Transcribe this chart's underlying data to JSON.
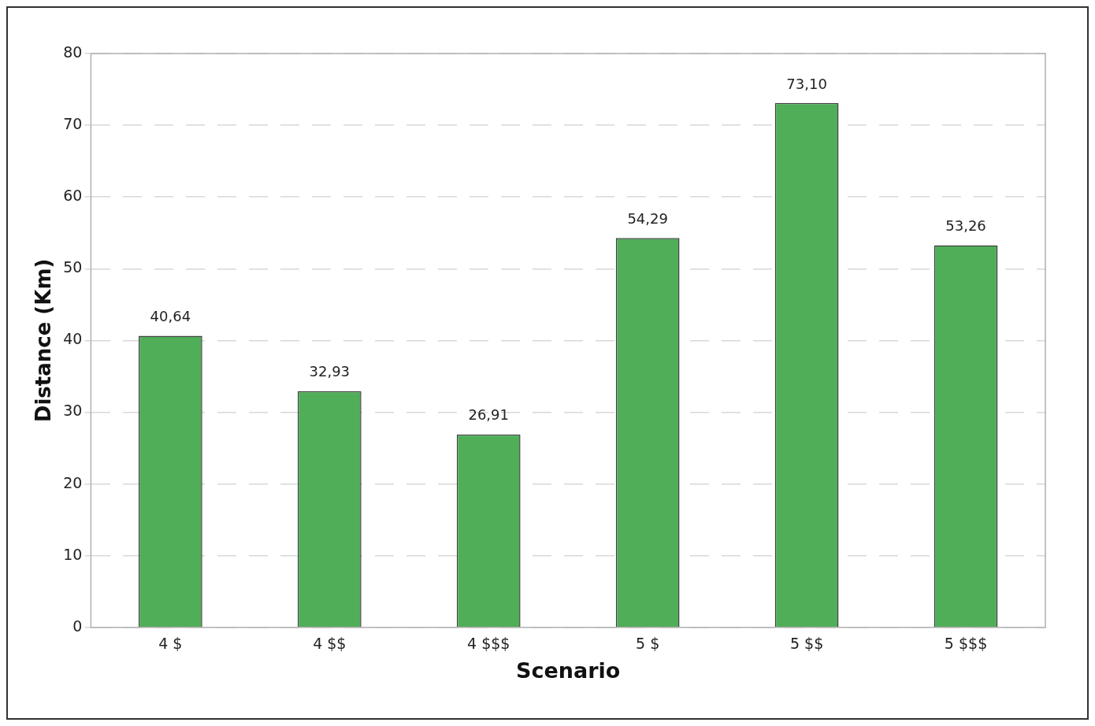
{
  "chart_data": {
    "type": "bar",
    "xlabel": "Scenario",
    "ylabel": "Distance (Km)",
    "categories": [
      "4 $",
      "4 $$",
      "4 $$$",
      "5 $",
      "5 $$",
      "5 $$$"
    ],
    "values": [
      40.64,
      32.93,
      26.91,
      54.29,
      73.1,
      53.26
    ],
    "value_labels": [
      "40,64",
      "32,93",
      "26,91",
      "54,29",
      "73,10",
      "53,26"
    ],
    "color": "#50ae58",
    "ylim": [
      0,
      80
    ],
    "yticks": [
      0,
      10,
      20,
      30,
      40,
      50,
      60,
      70,
      80
    ],
    "grid": "y",
    "legend": false
  }
}
